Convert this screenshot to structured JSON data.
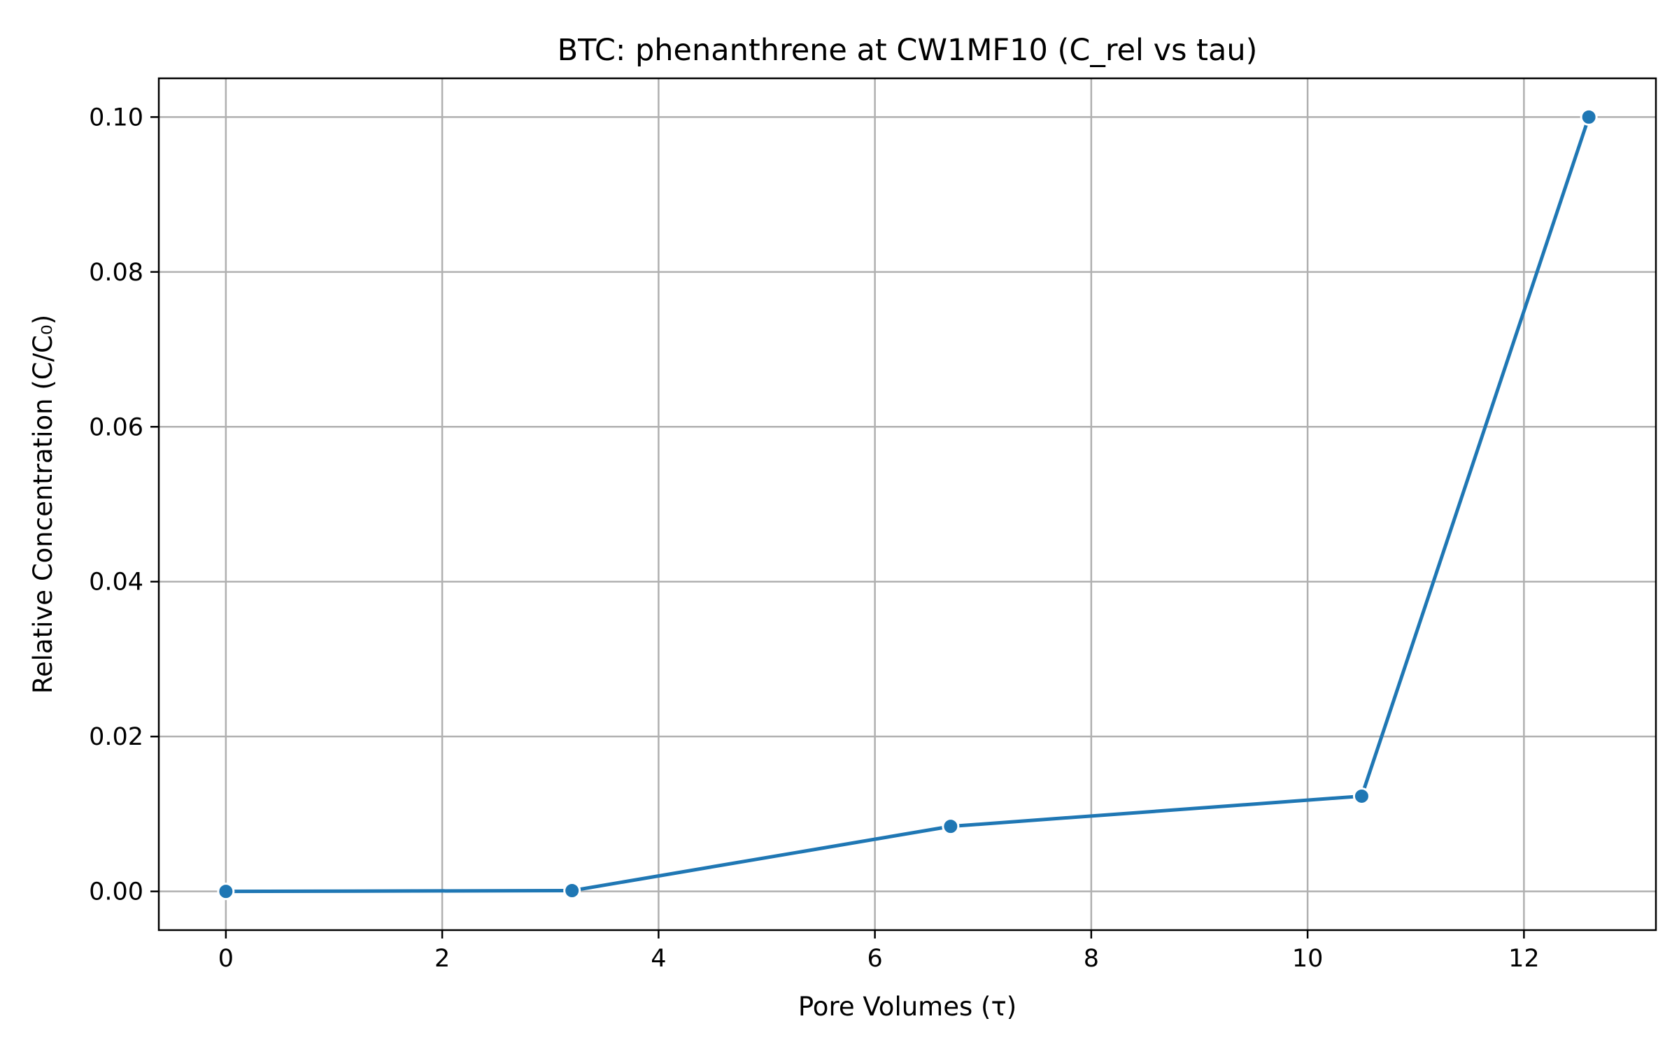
{
  "chart_data": {
    "type": "line",
    "title": "BTC: phenanthrene at CW1MF10 (C_rel vs tau)",
    "xlabel": "Pore Volumes (τ)",
    "ylabel": "Relative Concentration (C/C₀)",
    "xlim": [
      -0.62,
      13.22
    ],
    "ylim": [
      -0.005,
      0.105
    ],
    "xticks": [
      0,
      2,
      4,
      6,
      8,
      10,
      12
    ],
    "xtick_labels": [
      "0",
      "2",
      "4",
      "6",
      "8",
      "10",
      "12"
    ],
    "yticks": [
      0.0,
      0.02,
      0.04,
      0.06,
      0.08,
      0.1
    ],
    "ytick_labels": [
      "0.00",
      "0.02",
      "0.04",
      "0.06",
      "0.08",
      "0.10"
    ],
    "grid": true,
    "series": [
      {
        "color": "#1f77b4",
        "marker": "circle",
        "x": [
          0,
          3.2,
          6.7,
          10.5,
          12.6
        ],
        "y": [
          0.0,
          0.0001,
          0.0084,
          0.0123,
          0.1
        ]
      }
    ]
  }
}
